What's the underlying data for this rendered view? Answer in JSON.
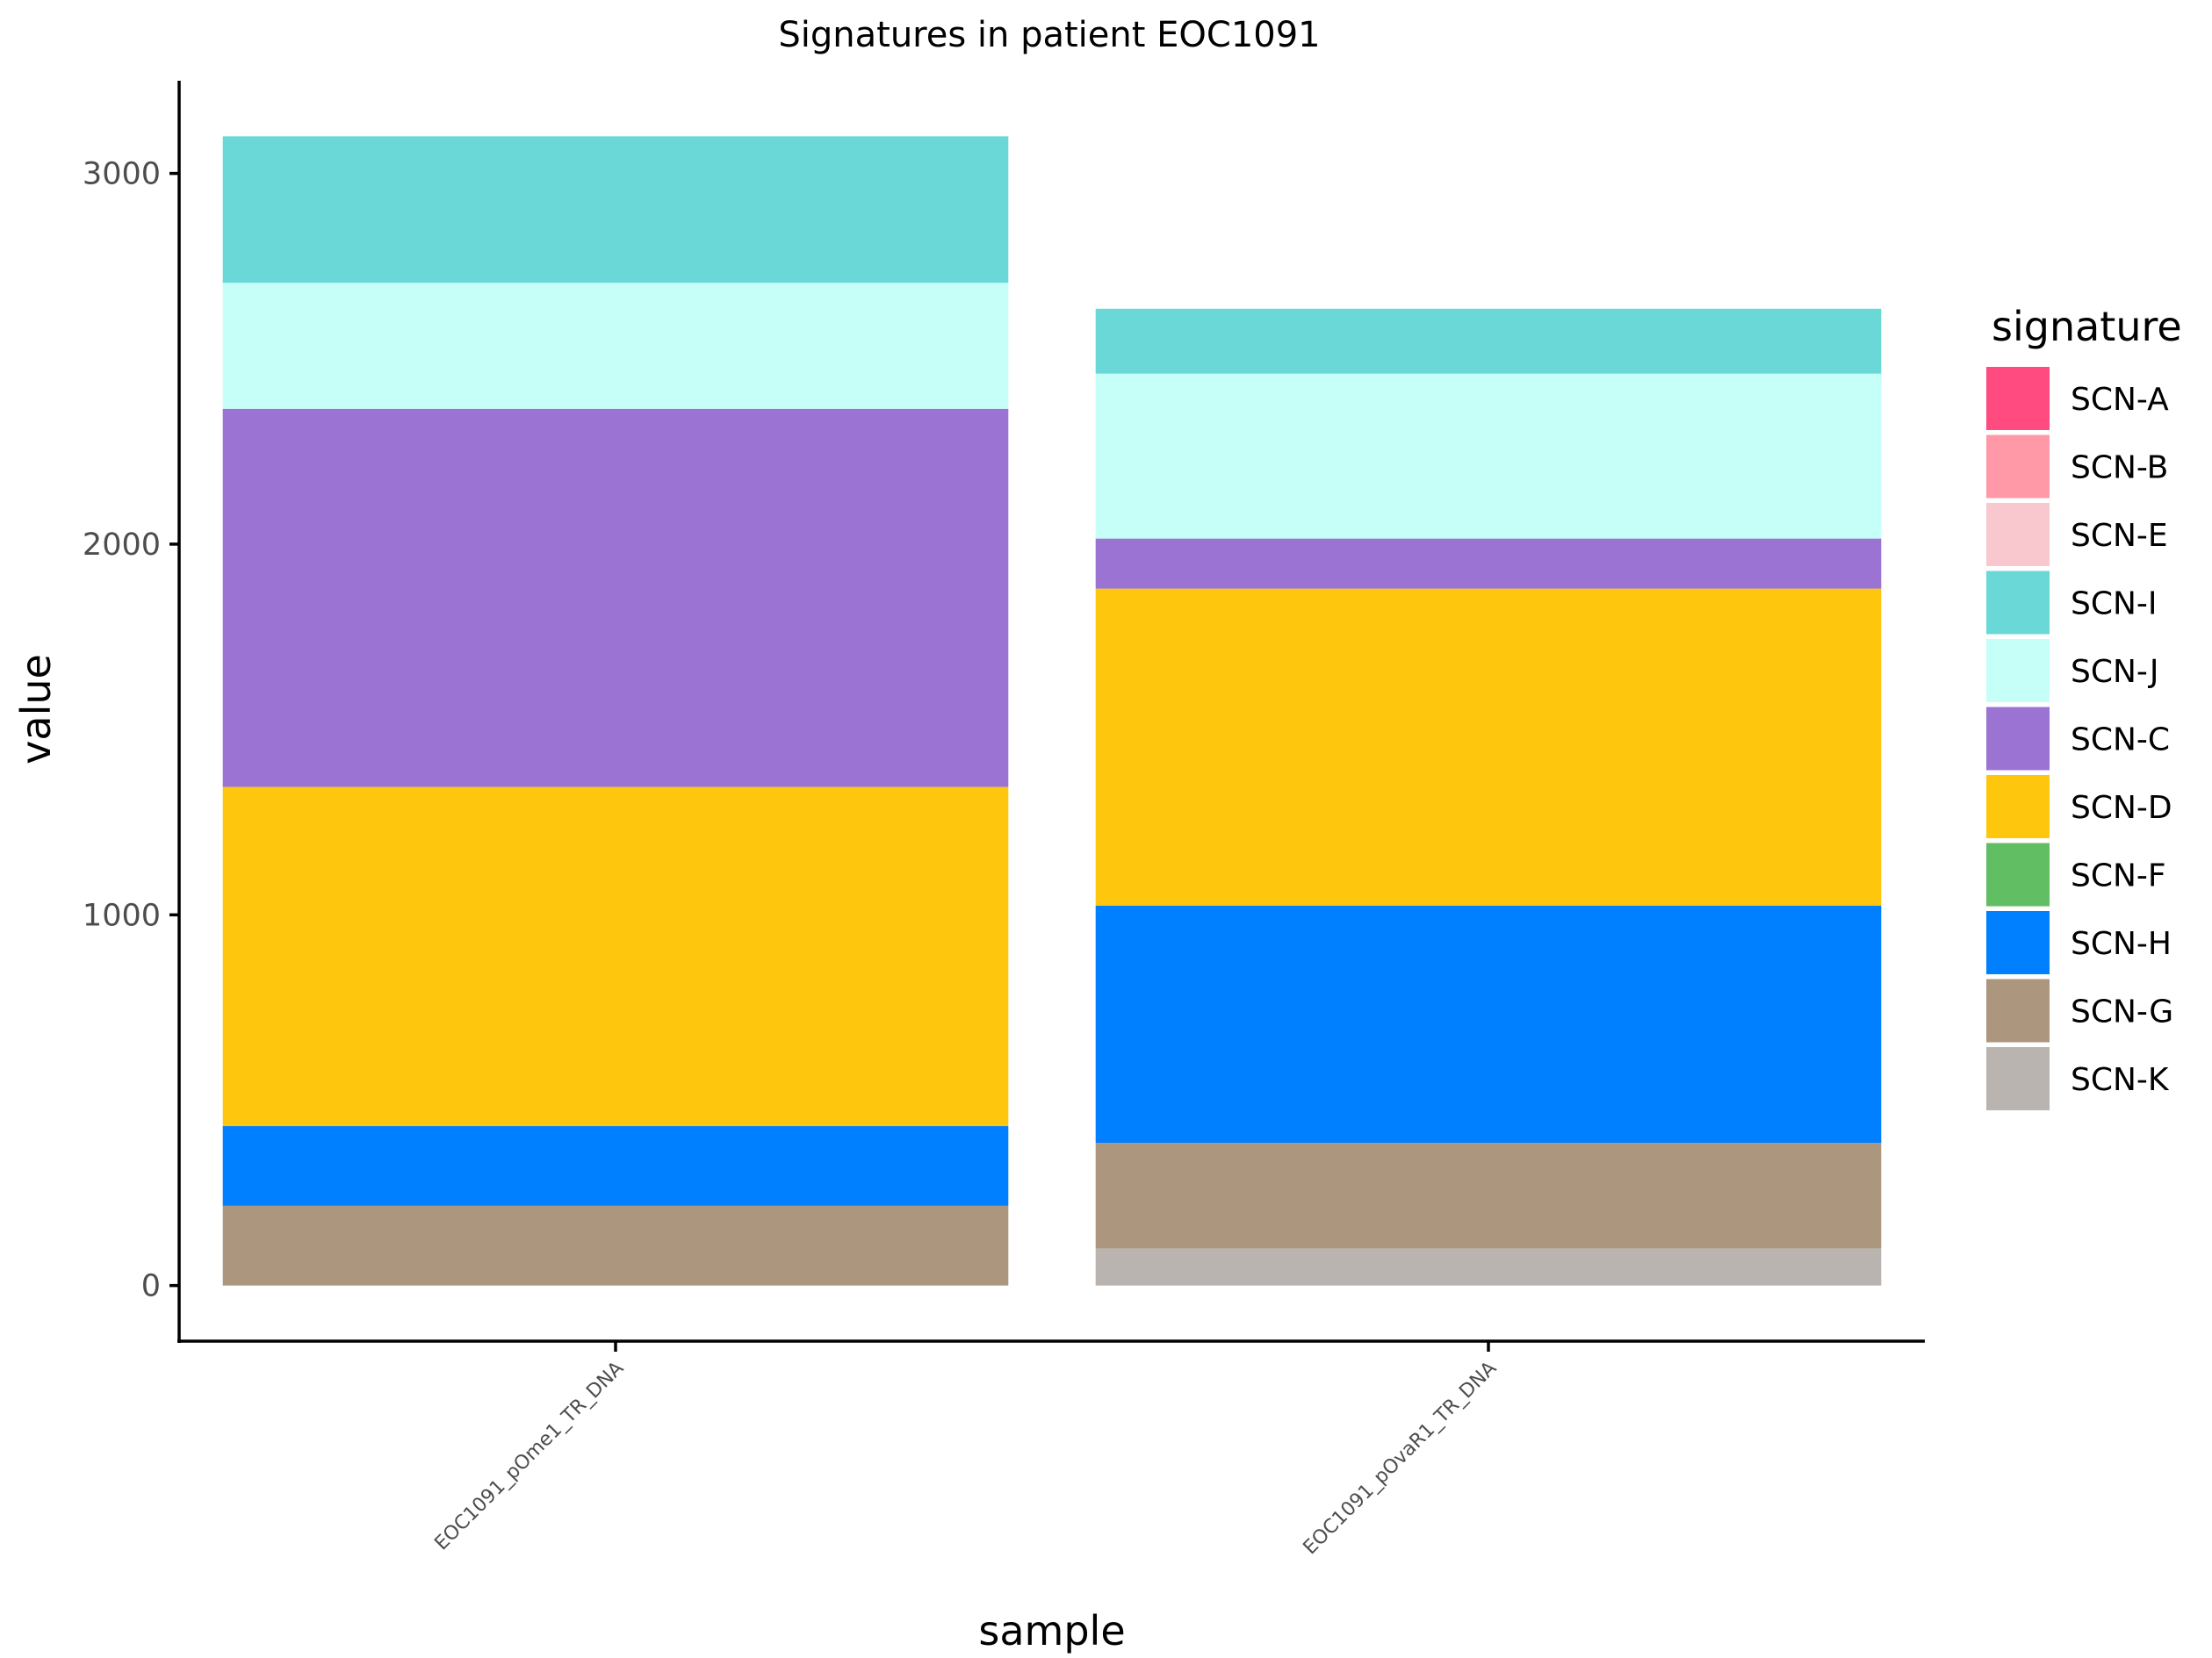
{
  "chart_data": {
    "type": "bar",
    "stacked": true,
    "title": "Signatures in patient EOC1091",
    "xlabel": "sample",
    "ylabel": "value",
    "ylim": [
      -150,
      3250
    ],
    "yticks": [
      0,
      1000,
      2000,
      3000
    ],
    "grid": false,
    "legend_position": "right",
    "legend_title": "signature",
    "categories": [
      "EOC1091_pOme1_TR_DNA",
      "EOC1091_pOvaR1_TR_DNA"
    ],
    "series": [
      {
        "name": "SCN-A",
        "color": "#FF4B80",
        "values": [
          0,
          0
        ]
      },
      {
        "name": "SCN-B",
        "color": "#FF99A8",
        "values": [
          0,
          0
        ]
      },
      {
        "name": "SCN-E",
        "color": "#F8C8CE",
        "values": [
          0,
          0
        ]
      },
      {
        "name": "SCN-I",
        "color": "#69D8D7",
        "values": [
          395,
          175
        ]
      },
      {
        "name": "SCN-J",
        "color": "#C6FFF8",
        "values": [
          340,
          445
        ]
      },
      {
        "name": "SCN-C",
        "color": "#9B73D3",
        "values": [
          1020,
          135
        ]
      },
      {
        "name": "SCN-D",
        "color": "#FEC60D",
        "values": [
          915,
          855
        ]
      },
      {
        "name": "SCN-F",
        "color": "#62BE62",
        "values": [
          0,
          0
        ]
      },
      {
        "name": "SCN-H",
        "color": "#0080FF",
        "values": [
          215,
          640
        ]
      },
      {
        "name": "SCN-G",
        "color": "#AC967E",
        "values": [
          215,
          285
        ]
      },
      {
        "name": "SCN-K",
        "color": "#B9B4AF",
        "values": [
          0,
          100
        ]
      }
    ]
  }
}
